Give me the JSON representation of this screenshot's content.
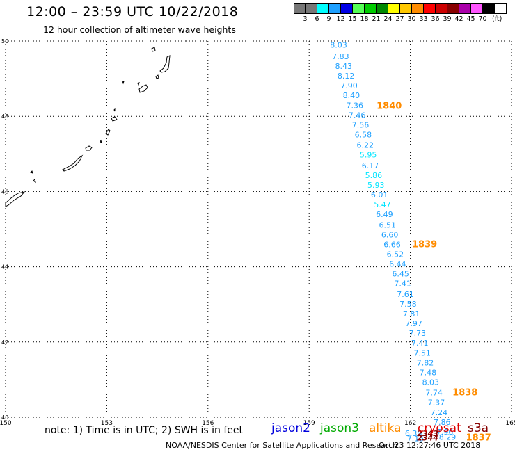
{
  "header": {
    "title": "12:00 – 23:59 UTC 10/22/2018",
    "subtitle": "12 hour collection of altimeter wave heights"
  },
  "legend": {
    "bins": [
      {
        "label": "3",
        "color": "#777777"
      },
      {
        "label": "6",
        "color": "#00ffff"
      },
      {
        "label": "9",
        "color": "#1ea0ff"
      },
      {
        "label": "12",
        "color": "#0000e6"
      },
      {
        "label": "15",
        "color": "#55ff55"
      },
      {
        "label": "18",
        "color": "#00cc00"
      },
      {
        "label": "21",
        "color": "#008800"
      },
      {
        "label": "24",
        "color": "#ffff00"
      },
      {
        "label": "27",
        "color": "#ffc800"
      },
      {
        "label": "30",
        "color": "#ff8c00"
      },
      {
        "label": "33",
        "color": "#ff0000"
      },
      {
        "label": "36",
        "color": "#cc0000"
      },
      {
        "label": "39",
        "color": "#880000"
      },
      {
        "label": "42",
        "color": "#aa00aa"
      },
      {
        "label": "45",
        "color": "#ff55ff"
      },
      {
        "label": "70",
        "color": "#000000"
      }
    ],
    "unit": "(ft)"
  },
  "axes": {
    "lon_ticks": [
      "150",
      "153",
      "156",
      "159",
      "162",
      "165"
    ],
    "lat_ticks": [
      "40",
      "42",
      "44",
      "46",
      "48",
      "50"
    ]
  },
  "track_readings": [
    {
      "value": "8.03",
      "lon": 159.62,
      "lat": 49.82,
      "color": "#1ea0ff"
    },
    {
      "value": "7.83",
      "lon": 159.68,
      "lat": 49.52,
      "color": "#1ea0ff"
    },
    {
      "value": "8.43",
      "lon": 159.77,
      "lat": 49.26,
      "color": "#1ea0ff"
    },
    {
      "value": "8.12",
      "lon": 159.84,
      "lat": 49.0,
      "color": "#1ea0ff"
    },
    {
      "value": "7.90",
      "lon": 159.93,
      "lat": 48.74,
      "color": "#1ea0ff"
    },
    {
      "value": "8.40",
      "lon": 160.0,
      "lat": 48.48,
      "color": "#1ea0ff"
    },
    {
      "value": "7.36",
      "lon": 160.1,
      "lat": 48.22,
      "color": "#1ea0ff"
    },
    {
      "value": "7.46",
      "lon": 160.17,
      "lat": 47.96,
      "color": "#1ea0ff"
    },
    {
      "value": "7.56",
      "lon": 160.27,
      "lat": 47.7,
      "color": "#1ea0ff"
    },
    {
      "value": "6.58",
      "lon": 160.35,
      "lat": 47.44,
      "color": "#1ea0ff"
    },
    {
      "value": "6.22",
      "lon": 160.41,
      "lat": 47.16,
      "color": "#1ea0ff"
    },
    {
      "value": "5.95",
      "lon": 160.5,
      "lat": 46.9,
      "color": "#00e5ff"
    },
    {
      "value": "6.17",
      "lon": 160.56,
      "lat": 46.62,
      "color": "#1ea0ff"
    },
    {
      "value": "5.86",
      "lon": 160.66,
      "lat": 46.36,
      "color": "#00e5ff"
    },
    {
      "value": "5.93",
      "lon": 160.73,
      "lat": 46.1,
      "color": "#00e5ff"
    },
    {
      "value": "6.01",
      "lon": 160.83,
      "lat": 45.84,
      "color": "#1ea0ff"
    },
    {
      "value": "5.47",
      "lon": 160.92,
      "lat": 45.58,
      "color": "#00e5ff"
    },
    {
      "value": "6.49",
      "lon": 160.98,
      "lat": 45.32,
      "color": "#1ea0ff"
    },
    {
      "value": "6.51",
      "lon": 161.07,
      "lat": 45.04,
      "color": "#1ea0ff"
    },
    {
      "value": "6.60",
      "lon": 161.14,
      "lat": 44.78,
      "color": "#1ea0ff"
    },
    {
      "value": "6.66",
      "lon": 161.21,
      "lat": 44.52,
      "color": "#1ea0ff"
    },
    {
      "value": "6.52",
      "lon": 161.3,
      "lat": 44.26,
      "color": "#1ea0ff"
    },
    {
      "value": "6.44",
      "lon": 161.37,
      "lat": 44.0,
      "color": "#1ea0ff"
    },
    {
      "value": "6.45",
      "lon": 161.46,
      "lat": 43.74,
      "color": "#1ea0ff"
    },
    {
      "value": "7.41",
      "lon": 161.52,
      "lat": 43.48,
      "color": "#1ea0ff"
    },
    {
      "value": "7.61",
      "lon": 161.6,
      "lat": 43.2,
      "color": "#1ea0ff"
    },
    {
      "value": "7.58",
      "lon": 161.68,
      "lat": 42.94,
      "color": "#1ea0ff"
    },
    {
      "value": "7.81",
      "lon": 161.78,
      "lat": 42.68,
      "color": "#1ea0ff"
    },
    {
      "value": "7.97",
      "lon": 161.85,
      "lat": 42.42,
      "color": "#1ea0ff"
    },
    {
      "value": "7.73",
      "lon": 161.96,
      "lat": 42.16,
      "color": "#1ea0ff"
    },
    {
      "value": "7.41",
      "lon": 162.03,
      "lat": 41.9,
      "color": "#1ea0ff"
    },
    {
      "value": "7.51",
      "lon": 162.1,
      "lat": 41.64,
      "color": "#1ea0ff"
    },
    {
      "value": "7.82",
      "lon": 162.19,
      "lat": 41.38,
      "color": "#1ea0ff"
    },
    {
      "value": "7.48",
      "lon": 162.27,
      "lat": 41.12,
      "color": "#1ea0ff"
    },
    {
      "value": "8.03",
      "lon": 162.35,
      "lat": 40.86,
      "color": "#1ea0ff"
    },
    {
      "value": "7.74",
      "lon": 162.45,
      "lat": 40.58,
      "color": "#1ea0ff"
    },
    {
      "value": "7.37",
      "lon": 162.52,
      "lat": 40.32,
      "color": "#1ea0ff"
    },
    {
      "value": "7.24",
      "lon": 162.6,
      "lat": 40.06,
      "color": "#1ea0ff"
    },
    {
      "value": "7.86",
      "lon": 162.69,
      "lat": 39.8,
      "color": "#1ea0ff"
    },
    {
      "value": "7.96",
      "lon": 162.77,
      "lat": 39.54,
      "color": "#1ea0ff"
    },
    {
      "value": "8.29",
      "lon": 162.85,
      "lat": 39.4,
      "color": "#1ea0ff"
    },
    {
      "value": "6.30",
      "lon": 161.84,
      "lat": 39.5,
      "color": "#1ea0ff"
    },
    {
      "value": "7.15",
      "lon": 161.9,
      "lat": 39.36,
      "color": "#1ea0ff"
    }
  ],
  "time_labels": [
    {
      "text": "1840",
      "lon": 161.0,
      "lat": 48.2,
      "color": "#ff8c00"
    },
    {
      "text": "1839",
      "lon": 162.05,
      "lat": 44.52,
      "color": "#ff8c00"
    },
    {
      "text": "1838",
      "lon": 163.25,
      "lat": 40.58,
      "color": "#ff8c00"
    },
    {
      "text": "1837",
      "lon": 163.65,
      "lat": 39.38,
      "color": "#ff8c00"
    },
    {
      "text": "2343",
      "lon": 162.2,
      "lat": 39.5,
      "color": "#880000"
    },
    {
      "text": "2344",
      "lon": 162.2,
      "lat": 39.38,
      "color": "#880000"
    }
  ],
  "satellites": [
    {
      "name": "jason2",
      "color": "#0000dd"
    },
    {
      "name": "jason3",
      "color": "#00aa00"
    },
    {
      "name": "altika",
      "color": "#ff8c00"
    },
    {
      "name": "cryosat",
      "color": "#dd0000"
    },
    {
      "name": "s3a",
      "color": "#880000"
    }
  ],
  "footer": {
    "note": "note:  1) Time is in UTC;  2) SWH is in feet",
    "credit": "NOAA/NESDIS Center for Satellite Applications and Research",
    "timestamp": "Oct 23 12:27:46 UTC 2018"
  }
}
